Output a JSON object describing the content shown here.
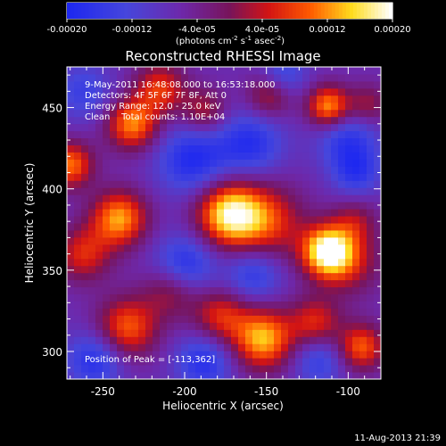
{
  "chart_data": {
    "type": "heatmap",
    "title": "Reconstructed RHESSI Image",
    "xlabel": "Heliocentric X (arcsec)",
    "ylabel": "Heliocentric Y (arcsec)",
    "xlim": [
      -272,
      -80
    ],
    "ylim": [
      283,
      475
    ],
    "x_ticks": [
      -250,
      -200,
      -150,
      -100
    ],
    "y_ticks": [
      300,
      350,
      400,
      450
    ],
    "colorbar": {
      "label_main": "(photons cm",
      "label_exp1": "-2",
      "label_mid": " s",
      "label_exp2": "-1",
      "label_end": " asec",
      "label_exp3": "-2",
      "label_close": ")",
      "range": [
        -0.0002,
        0.0002
      ],
      "tick_labels": [
        "-0.00020",
        "-0.00012",
        "-4.0e-05",
        "4.0e-05",
        "0.00012",
        "0.00020"
      ],
      "tick_values": [
        -0.0002,
        -0.00012,
        -4e-05,
        4e-05,
        0.00012,
        0.0002
      ]
    },
    "annotations": [
      "9-May-2011 16:48:08.000 to 16:53:18.000",
      "Detectors: 4F 5F 6F 7F 8F, Att 0",
      "Energy Range: 12.0 - 25.0 keV",
      "Clean    Total counts: 1.10E+04"
    ],
    "peak_label": "Position of Peak = [-113,362]",
    "peak": [
      -113,
      362
    ],
    "blobs": [
      {
        "x": -173,
        "y": 385,
        "a": 1.0,
        "s": 14
      },
      {
        "x": -150,
        "y": 380,
        "a": 0.6,
        "s": 16
      },
      {
        "x": -113,
        "y": 362,
        "a": 1.05,
        "s": 11
      },
      {
        "x": -100,
        "y": 355,
        "a": 0.45,
        "s": 14
      },
      {
        "x": -240,
        "y": 382,
        "a": 0.85,
        "s": 12
      },
      {
        "x": -262,
        "y": 360,
        "a": 0.55,
        "s": 12
      },
      {
        "x": -270,
        "y": 415,
        "a": 0.75,
        "s": 10
      },
      {
        "x": -232,
        "y": 440,
        "a": 0.8,
        "s": 11
      },
      {
        "x": -215,
        "y": 462,
        "a": 0.6,
        "s": 11
      },
      {
        "x": -188,
        "y": 448,
        "a": 0.45,
        "s": 10
      },
      {
        "x": -148,
        "y": 458,
        "a": 0.5,
        "s": 10
      },
      {
        "x": -112,
        "y": 451,
        "a": 0.85,
        "s": 9
      },
      {
        "x": -88,
        "y": 452,
        "a": 0.4,
        "s": 9
      },
      {
        "x": -235,
        "y": 315,
        "a": 0.7,
        "s": 13
      },
      {
        "x": -208,
        "y": 338,
        "a": 0.45,
        "s": 12
      },
      {
        "x": -178,
        "y": 322,
        "a": 0.55,
        "s": 12
      },
      {
        "x": -152,
        "y": 308,
        "a": 0.9,
        "s": 13
      },
      {
        "x": -120,
        "y": 318,
        "a": 0.55,
        "s": 11
      },
      {
        "x": -92,
        "y": 303,
        "a": 0.7,
        "s": 10
      },
      {
        "x": -96,
        "y": 380,
        "a": 0.35,
        "s": 10
      },
      {
        "x": -195,
        "y": 418,
        "a": -0.55,
        "s": 15
      },
      {
        "x": -160,
        "y": 428,
        "a": -0.5,
        "s": 14
      },
      {
        "x": -100,
        "y": 430,
        "a": -0.45,
        "s": 13
      },
      {
        "x": -200,
        "y": 353,
        "a": -0.55,
        "s": 13
      },
      {
        "x": -158,
        "y": 348,
        "a": -0.45,
        "s": 12
      },
      {
        "x": -255,
        "y": 295,
        "a": -0.5,
        "s": 12
      },
      {
        "x": -188,
        "y": 294,
        "a": -0.5,
        "s": 12
      },
      {
        "x": -118,
        "y": 295,
        "a": -0.4,
        "s": 11
      },
      {
        "x": -95,
        "y": 410,
        "a": -0.4,
        "s": 10
      },
      {
        "x": -262,
        "y": 460,
        "a": -0.35,
        "s": 12
      },
      {
        "x": -140,
        "y": 470,
        "a": -0.4,
        "s": 10
      }
    ]
  },
  "footer_timestamp": "11-Aug-2013 21:39"
}
